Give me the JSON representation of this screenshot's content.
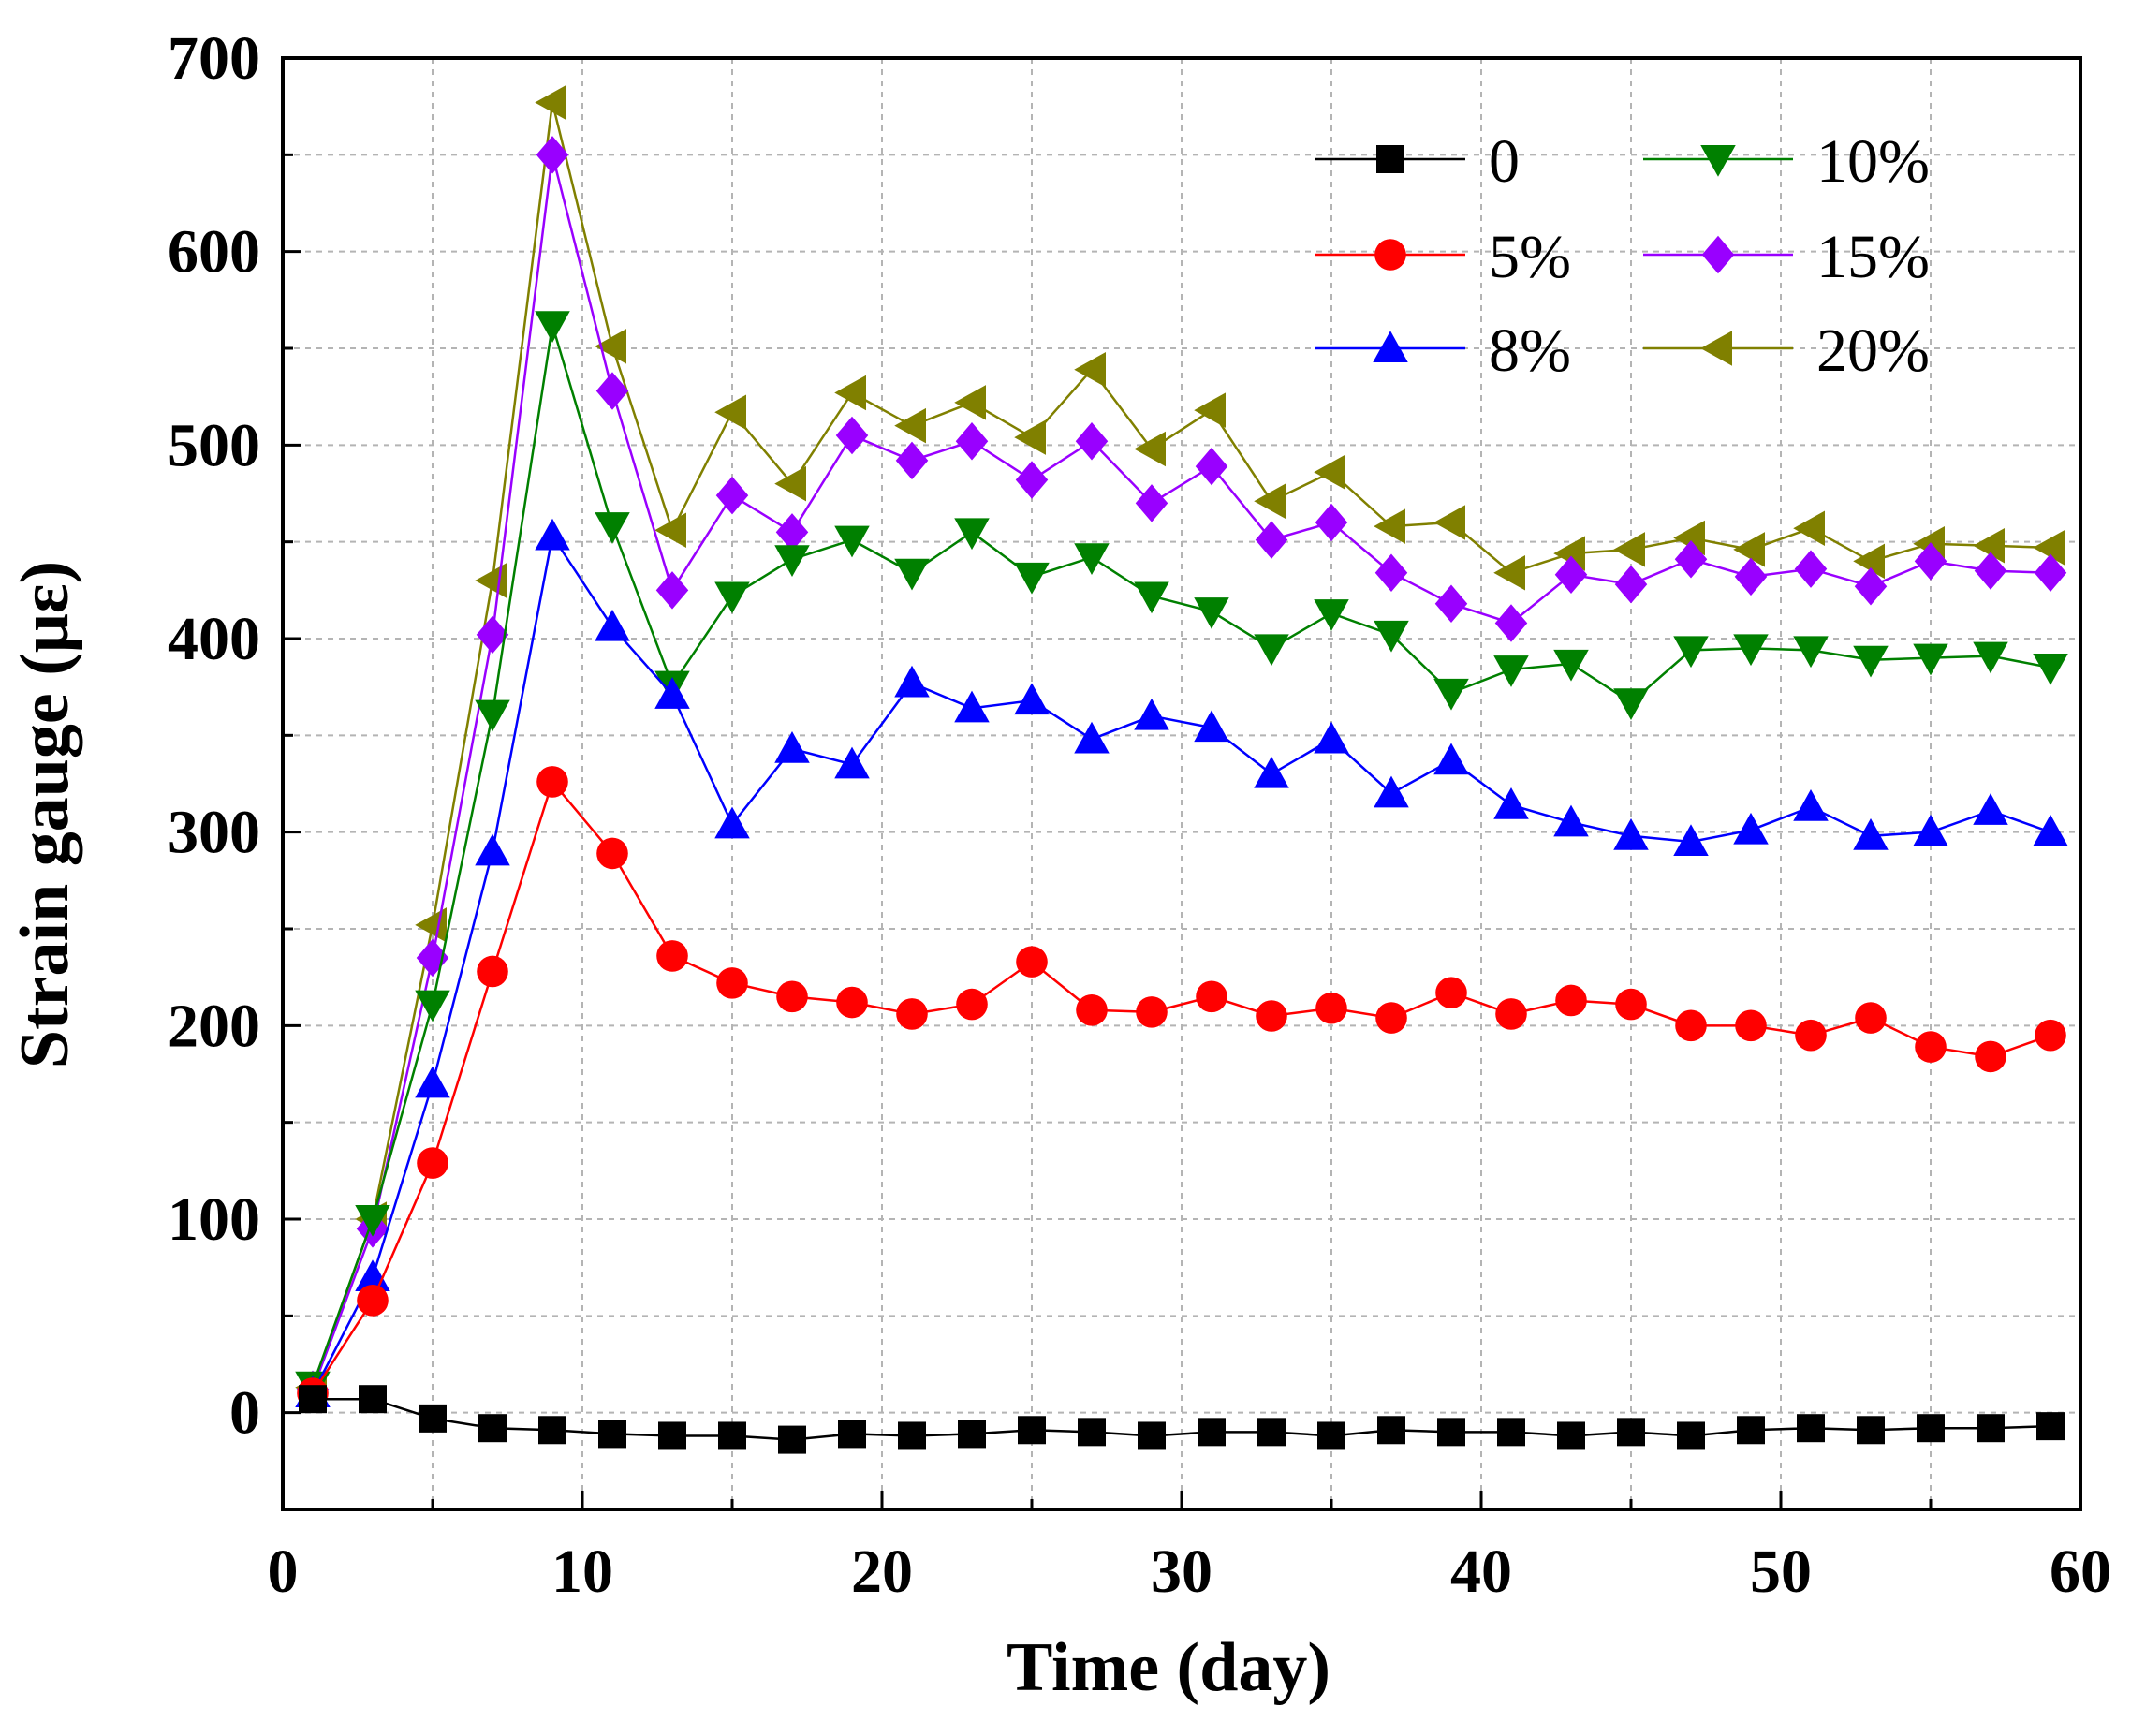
{
  "chart_data": {
    "type": "line",
    "xlabel": "Time (day)",
    "ylabel": "Strain gauge (με)",
    "xlim": [
      0,
      60
    ],
    "ylim": [
      -50,
      700
    ],
    "xticks": [
      0,
      10,
      20,
      30,
      40,
      50,
      60
    ],
    "yticks": [
      0,
      100,
      200,
      300,
      400,
      500,
      600,
      700
    ],
    "grid": true,
    "legend_position": "top-right",
    "x": [
      1,
      3,
      5,
      7,
      9,
      11,
      13,
      15,
      17,
      19,
      21,
      23,
      25,
      27,
      29,
      31,
      33,
      35,
      37,
      39,
      41,
      43,
      45,
      47,
      49,
      51,
      53,
      55,
      57,
      59
    ],
    "series": [
      {
        "name": "0",
        "color": "#000000",
        "marker": "square",
        "values": [
          7,
          7,
          -3,
          -8,
          -9,
          -11,
          -12,
          -12,
          -14,
          -11,
          -12,
          -11,
          -9,
          -10,
          -12,
          -10,
          -10,
          -12,
          -9,
          -10,
          -10,
          -12,
          -10,
          -12,
          -9,
          -8,
          -9,
          -8,
          -8,
          -7
        ]
      },
      {
        "name": "5%",
        "color": "#ff0000",
        "marker": "circle",
        "values": [
          10,
          58,
          129,
          228,
          326,
          289,
          236,
          222,
          215,
          212,
          206,
          211,
          233,
          208,
          207,
          215,
          205,
          209,
          204,
          217,
          206,
          213,
          211,
          200,
          200,
          195,
          204,
          189,
          184,
          195
        ]
      },
      {
        "name": "8%",
        "color": "#0000ff",
        "marker": "triangle-up",
        "values": [
          10,
          70,
          170,
          290,
          453,
          406,
          371,
          304,
          343,
          335,
          377,
          364,
          368,
          348,
          360,
          354,
          330,
          348,
          320,
          337,
          314,
          305,
          298,
          295,
          301,
          313,
          298,
          300,
          311,
          300
        ]
      },
      {
        "name": "10%",
        "color": "#008000",
        "marker": "triangle-down",
        "values": [
          14,
          100,
          211,
          361,
          562,
          458,
          376,
          422,
          441,
          451,
          434,
          455,
          432,
          442,
          422,
          414,
          395,
          413,
          402,
          372,
          384,
          387,
          367,
          394,
          395,
          394,
          389,
          390,
          391,
          385
        ]
      },
      {
        "name": "15%",
        "color": "#9900ff",
        "marker": "diamond",
        "values": [
          12,
          95,
          235,
          402,
          650,
          528,
          425,
          474,
          455,
          505,
          492,
          502,
          482,
          502,
          470,
          489,
          451,
          460,
          434,
          418,
          408,
          433,
          428,
          441,
          432,
          436,
          427,
          440,
          435,
          434
        ]
      },
      {
        "name": "20%",
        "color": "#808000",
        "marker": "triangle-left",
        "values": [
          13,
          100,
          252,
          430,
          677,
          551,
          456,
          517,
          480,
          527,
          510,
          522,
          504,
          539,
          498,
          518,
          471,
          486,
          458,
          460,
          434,
          444,
          446,
          452,
          446,
          457,
          440,
          449,
          448,
          447
        ]
      }
    ]
  }
}
